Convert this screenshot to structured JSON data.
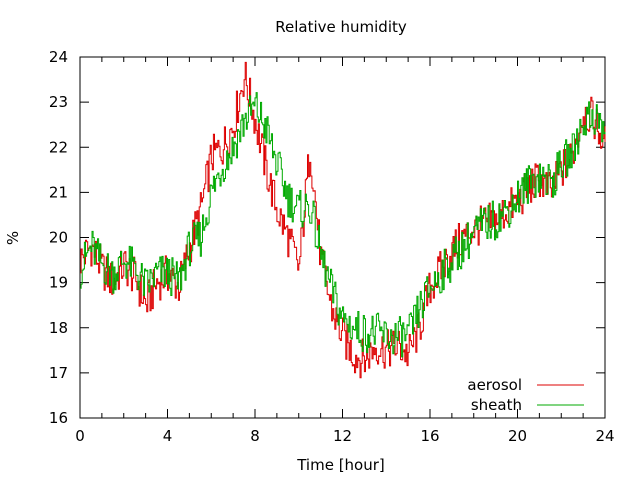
{
  "chart_data": {
    "type": "line",
    "title": "Relative humidity",
    "xlabel": "Time [hour]",
    "ylabel": "%",
    "xlim": [
      0,
      24
    ],
    "ylim": [
      16,
      24
    ],
    "xticks": [
      0,
      4,
      8,
      12,
      16,
      20,
      24
    ],
    "yticks": [
      16,
      17,
      18,
      19,
      20,
      21,
      22,
      23,
      24
    ],
    "xtick_labels": [
      "0",
      "4",
      "8",
      "12",
      "16",
      "20",
      "24"
    ],
    "ytick_labels": [
      "16",
      "17",
      "18",
      "19",
      "20",
      "21",
      "22",
      "23",
      "24"
    ],
    "grid": false,
    "legend_position": "bottom-right",
    "x": [
      0.0,
      0.5,
      1.0,
      1.5,
      2.0,
      2.5,
      3.0,
      3.5,
      4.0,
      4.5,
      5.0,
      5.5,
      6.0,
      6.5,
      7.0,
      7.5,
      8.0,
      8.5,
      9.0,
      9.5,
      10.0,
      10.5,
      11.0,
      11.5,
      12.0,
      12.5,
      13.0,
      13.5,
      14.0,
      14.5,
      15.0,
      15.5,
      16.0,
      16.5,
      17.0,
      17.5,
      18.0,
      18.5,
      19.0,
      19.5,
      20.0,
      20.5,
      21.0,
      21.5,
      22.0,
      22.5,
      23.0,
      23.5,
      24.0
    ],
    "series": [
      {
        "name": "aerosol",
        "color": "#dd0000",
        "values": [
          19.5,
          19.8,
          19.3,
          19.0,
          19.4,
          19.1,
          18.5,
          19.0,
          19.2,
          18.9,
          19.8,
          20.6,
          21.8,
          22.0,
          22.5,
          23.6,
          22.6,
          21.5,
          20.6,
          20.0,
          19.3,
          22.0,
          19.5,
          18.4,
          17.8,
          17.4,
          17.3,
          17.6,
          17.5,
          17.6,
          17.4,
          18.0,
          18.9,
          19.3,
          19.7,
          20.0,
          20.2,
          20.3,
          20.4,
          20.6,
          20.8,
          21.1,
          21.3,
          21.0,
          21.5,
          21.8,
          22.8,
          22.6,
          22.0
        ]
      },
      {
        "name": "sheath",
        "color": "#00aa00",
        "values": [
          19.3,
          19.8,
          19.4,
          19.2,
          19.5,
          19.3,
          18.9,
          19.2,
          19.2,
          19.0,
          19.8,
          20.0,
          21.0,
          21.6,
          22.0,
          22.6,
          22.9,
          22.4,
          21.6,
          20.9,
          20.6,
          20.7,
          19.6,
          18.8,
          18.2,
          18.0,
          17.9,
          17.9,
          17.8,
          17.8,
          17.8,
          18.4,
          18.9,
          19.2,
          19.5,
          19.8,
          20.1,
          20.3,
          20.4,
          20.6,
          20.9,
          21.2,
          21.4,
          21.2,
          21.6,
          21.9,
          22.6,
          22.7,
          22.3
        ]
      }
    ]
  }
}
